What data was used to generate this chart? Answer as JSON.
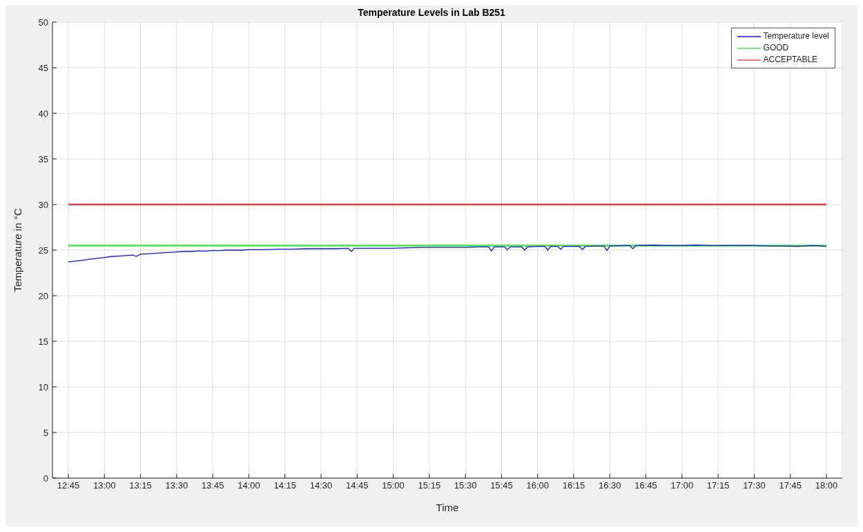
{
  "chart_data": {
    "type": "line",
    "title": "Temperature Levels in Lab B251",
    "xlabel": "Time",
    "ylabel": "Temperature in °C",
    "xlim": [
      12.64,
      18.11
    ],
    "ylim": [
      0,
      50
    ],
    "xticks": [
      {
        "value": 12.75,
        "label": "12:45"
      },
      {
        "value": 13,
        "label": "13:00"
      },
      {
        "value": 13.25,
        "label": "13:15"
      },
      {
        "value": 13.5,
        "label": "13:30"
      },
      {
        "value": 13.75,
        "label": "13:45"
      },
      {
        "value": 14,
        "label": "14:00"
      },
      {
        "value": 14.25,
        "label": "14:15"
      },
      {
        "value": 14.5,
        "label": "14:30"
      },
      {
        "value": 14.75,
        "label": "14:45"
      },
      {
        "value": 15,
        "label": "15:00"
      },
      {
        "value": 15.25,
        "label": "15:15"
      },
      {
        "value": 15.5,
        "label": "15:30"
      },
      {
        "value": 15.75,
        "label": "15:45"
      },
      {
        "value": 16,
        "label": "16:00"
      },
      {
        "value": 16.25,
        "label": "16:15"
      },
      {
        "value": 16.5,
        "label": "16:30"
      },
      {
        "value": 16.75,
        "label": "16:45"
      },
      {
        "value": 17,
        "label": "17:00"
      },
      {
        "value": 17.25,
        "label": "17:15"
      },
      {
        "value": 17.5,
        "label": "17:30"
      },
      {
        "value": 17.75,
        "label": "17:45"
      },
      {
        "value": 18,
        "label": "18:00"
      }
    ],
    "yticks": [
      0,
      5,
      10,
      15,
      20,
      25,
      30,
      35,
      40,
      45,
      50
    ],
    "grid": true,
    "legend": "top right",
    "marker": "none",
    "line_style": "solid",
    "series": [
      {
        "name": "Temperature level",
        "color": "#1010f0",
        "x": [
          12.75,
          12.8,
          12.85,
          12.9,
          12.95,
          13.0,
          13.05,
          13.1,
          13.15,
          13.2,
          13.22,
          13.25,
          13.3,
          13.35,
          13.4,
          13.45,
          13.5,
          13.55,
          13.6,
          13.65,
          13.7,
          13.75,
          13.8,
          13.85,
          13.9,
          13.95,
          14.0,
          14.1,
          14.2,
          14.3,
          14.4,
          14.5,
          14.6,
          14.69,
          14.71,
          14.73,
          14.85,
          15.0,
          15.1,
          15.2,
          15.3,
          15.4,
          15.5,
          15.6,
          15.66,
          15.68,
          15.7,
          15.77,
          15.79,
          15.81,
          15.89,
          15.91,
          15.93,
          16.0,
          16.05,
          16.07,
          16.09,
          16.14,
          16.16,
          16.18,
          16.25,
          16.29,
          16.31,
          16.33,
          16.4,
          16.46,
          16.48,
          16.5,
          16.6,
          16.64,
          16.66,
          16.68,
          16.8,
          16.9,
          17.0,
          17.1,
          17.2,
          17.3,
          17.4,
          17.5,
          17.6,
          17.7,
          17.8,
          17.91,
          18.0
        ],
        "values": [
          23.7,
          23.8,
          23.9,
          24.0,
          24.1,
          24.2,
          24.3,
          24.35,
          24.4,
          24.45,
          24.3,
          24.55,
          24.6,
          24.65,
          24.7,
          24.75,
          24.8,
          24.85,
          24.85,
          24.9,
          24.9,
          24.95,
          24.95,
          25.0,
          25.0,
          25.0,
          25.05,
          25.05,
          25.1,
          25.1,
          25.15,
          25.15,
          25.15,
          25.2,
          24.85,
          25.2,
          25.2,
          25.2,
          25.25,
          25.3,
          25.3,
          25.3,
          25.3,
          25.35,
          25.35,
          24.9,
          25.35,
          25.35,
          25.05,
          25.35,
          25.35,
          25.0,
          25.35,
          25.4,
          25.4,
          25.0,
          25.4,
          25.4,
          25.1,
          25.4,
          25.4,
          25.4,
          25.05,
          25.4,
          25.45,
          25.45,
          24.95,
          25.45,
          25.5,
          25.5,
          25.15,
          25.5,
          25.55,
          25.5,
          25.5,
          25.55,
          25.5,
          25.5,
          25.5,
          25.5,
          25.45,
          25.45,
          25.4,
          25.5,
          25.4
        ]
      },
      {
        "name": "GOOD",
        "color": "#3ce83c",
        "x": [
          12.75,
          18.0
        ],
        "values": [
          25.5,
          25.5
        ]
      },
      {
        "name": "ACCEPTABLE",
        "color": "#f03c3c",
        "x": [
          12.75,
          18.0
        ],
        "values": [
          30,
          30
        ]
      }
    ]
  }
}
